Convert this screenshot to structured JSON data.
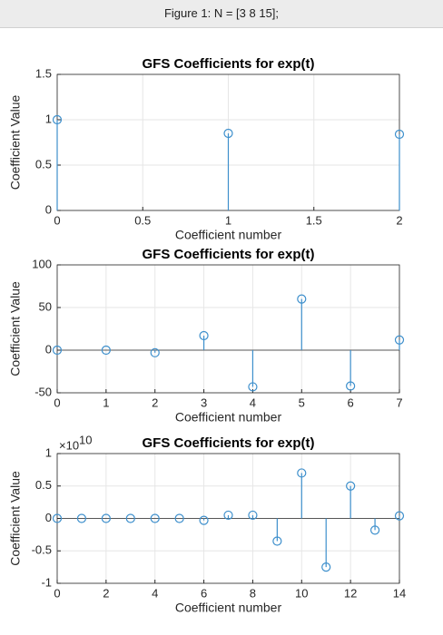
{
  "window": {
    "title": "Figure 1: N = [3 8 15];"
  },
  "chart_data": [
    {
      "type": "stem",
      "title": "GFS Coefficients for exp(t)",
      "xlabel": "Coefficient number",
      "ylabel": "Coefficient Value",
      "x": [
        0,
        1,
        2
      ],
      "values": [
        1.0,
        0.85,
        0.84
      ],
      "color": "#3d8fcc",
      "xlim": [
        0,
        2
      ],
      "xticks": [
        0,
        0.5,
        1,
        1.5,
        2
      ],
      "ylim": [
        0,
        1.5
      ],
      "yticks": [
        0,
        0.5,
        1,
        1.5
      ],
      "grid": true
    },
    {
      "type": "stem",
      "title": "GFS Coefficients for exp(t)",
      "xlabel": "Coefficient number",
      "ylabel": "Coefficient Value",
      "x": [
        0,
        1,
        2,
        3,
        4,
        5,
        6,
        7
      ],
      "values": [
        0,
        0,
        -3,
        17,
        -43,
        60,
        -42,
        12
      ],
      "color": "#3d8fcc",
      "xlim": [
        0,
        7
      ],
      "xticks": [
        0,
        1,
        2,
        3,
        4,
        5,
        6,
        7
      ],
      "ylim": [
        -50,
        100
      ],
      "yticks": [
        -50,
        0,
        50,
        100
      ],
      "grid": true
    },
    {
      "type": "stem",
      "title": "GFS Coefficients for exp(t)",
      "xlabel": "Coefficient number",
      "ylabel": "Coefficient Value",
      "y_scale_base": "×10",
      "y_scale_exponent": "10",
      "x": [
        0,
        1,
        2,
        3,
        4,
        5,
        6,
        7,
        8,
        9,
        10,
        11,
        12,
        13,
        14
      ],
      "values": [
        0,
        0,
        0,
        0,
        0,
        0,
        -0.03,
        0.05,
        0.05,
        -0.35,
        0.7,
        -0.75,
        0.5,
        -0.18,
        0.04
      ],
      "color": "#3d8fcc",
      "xlim": [
        0,
        14
      ],
      "xticks": [
        0,
        2,
        4,
        6,
        8,
        10,
        12,
        14
      ],
      "ylim": [
        -1,
        1
      ],
      "yticks": [
        -1,
        -0.5,
        0,
        0.5,
        1
      ],
      "grid": true
    }
  ]
}
